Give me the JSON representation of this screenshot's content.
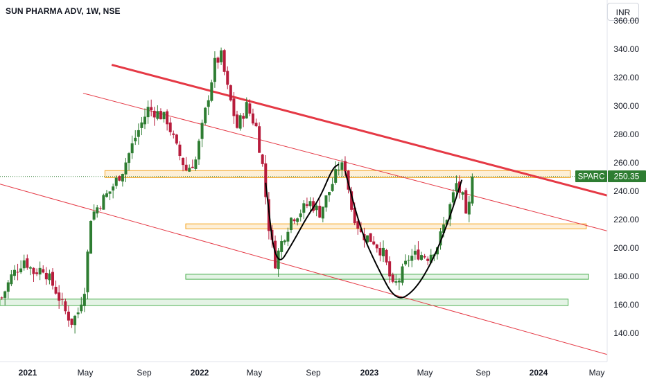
{
  "header": {
    "title": "SUN PHARMA ADV, 1W, NSE"
  },
  "currency": "INR",
  "last_price": {
    "symbol": "SPARC",
    "value": "250.35"
  },
  "colors": {
    "up": "#26a69a",
    "up_fill": "#2f7d32",
    "down": "#c2185b",
    "down_fill": "#b71c3c",
    "trendline": "#e53945",
    "resistance": "#f5a623",
    "support": "#4caf50",
    "pattern": "#000000"
  },
  "chart_data": {
    "type": "candlestick",
    "title": "SUN PHARMA ADV, 1W, NSE",
    "y_ticks": [
      "140.00",
      "160.00",
      "180.00",
      "200.00",
      "220.00",
      "240.00",
      "260.00",
      "280.00",
      "300.00",
      "320.00",
      "340.00",
      "360.00"
    ],
    "x_ticks": [
      {
        "label": "2021",
        "bold": true
      },
      {
        "label": "May",
        "bold": false
      },
      {
        "label": "Sep",
        "bold": false
      },
      {
        "label": "2022",
        "bold": true
      },
      {
        "label": "May",
        "bold": false
      },
      {
        "label": "Sep",
        "bold": false
      },
      {
        "label": "2023",
        "bold": true
      },
      {
        "label": "May",
        "bold": false
      },
      {
        "label": "Sep",
        "bold": false
      },
      {
        "label": "2024",
        "bold": true
      },
      {
        "label": "May",
        "bold": false
      }
    ],
    "x_range": [
      "2020-11",
      "2024-06"
    ],
    "ylim": [
      123,
      362
    ],
    "grid": false,
    "last_price": 250.35,
    "anchors": [
      [
        "2020-11-05",
        165
      ],
      [
        "2020-11-26",
        180
      ],
      [
        "2020-12-24",
        192
      ],
      [
        "2021-01-14",
        183
      ],
      [
        "2021-02-04",
        186
      ],
      [
        "2021-03-04",
        170
      ],
      [
        "2021-03-25",
        155
      ],
      [
        "2021-04-08",
        148
      ],
      [
        "2021-04-22",
        155
      ],
      [
        "2021-05-06",
        172
      ],
      [
        "2021-05-13",
        196
      ],
      [
        "2021-05-20",
        222
      ],
      [
        "2021-06-10",
        232
      ],
      [
        "2021-07-01",
        240
      ],
      [
        "2021-07-29",
        255
      ],
      [
        "2021-08-26",
        278
      ],
      [
        "2021-09-23",
        298
      ],
      [
        "2021-10-14",
        295
      ],
      [
        "2021-11-04",
        290
      ],
      [
        "2021-11-25",
        270
      ],
      [
        "2021-12-16",
        255
      ],
      [
        "2022-01-06",
        262
      ],
      [
        "2022-01-27",
        296
      ],
      [
        "2022-02-17",
        330
      ],
      [
        "2022-03-03",
        335
      ],
      [
        "2022-03-17",
        312
      ],
      [
        "2022-04-07",
        285
      ],
      [
        "2022-04-28",
        300
      ],
      [
        "2022-05-19",
        285
      ],
      [
        "2022-06-02",
        258
      ],
      [
        "2022-06-16",
        215
      ],
      [
        "2022-06-30",
        190
      ],
      [
        "2022-07-14",
        204
      ],
      [
        "2022-08-04",
        221
      ],
      [
        "2022-08-25",
        226
      ],
      [
        "2022-09-15",
        232
      ],
      [
        "2022-10-06",
        225
      ],
      [
        "2022-10-27",
        240
      ],
      [
        "2022-11-17",
        257
      ],
      [
        "2022-12-01",
        257
      ],
      [
        "2022-12-15",
        228
      ],
      [
        "2023-01-05",
        210
      ],
      [
        "2023-02-02",
        205
      ],
      [
        "2023-02-23",
        196
      ],
      [
        "2023-03-16",
        172
      ],
      [
        "2023-03-30",
        178
      ],
      [
        "2023-04-20",
        193
      ],
      [
        "2023-05-11",
        196
      ],
      [
        "2023-06-01",
        194
      ],
      [
        "2023-06-22",
        202
      ],
      [
        "2023-07-13",
        222
      ],
      [
        "2023-08-03",
        245
      ],
      [
        "2023-08-17",
        235
      ],
      [
        "2023-08-24",
        220
      ],
      [
        "2023-08-31",
        230
      ],
      [
        "2023-09-07",
        250
      ]
    ],
    "trendlines": [
      {
        "name": "main-resistance",
        "from": [
          "2021-07-05",
          329
        ],
        "to": [
          "2024-06-30",
          237
        ]
      },
      {
        "name": "upper-channel",
        "from": [
          "2021-05-03",
          309
        ],
        "to": [
          "2024-06-30",
          212
        ]
      },
      {
        "name": "lower-channel",
        "from": [
          "2020-11-01",
          245
        ],
        "to": [
          "2024-06-30",
          125
        ]
      }
    ],
    "zones": [
      {
        "name": "resistance-zone-250",
        "from": "2021-06-20",
        "to": "2024-04-10",
        "low": 249.5,
        "high": 254.5,
        "kind": "resistance"
      },
      {
        "name": "resistance-zone-216",
        "from": "2021-12-15",
        "to": "2024-05-15",
        "low": 213.5,
        "high": 217.0,
        "kind": "resistance"
      },
      {
        "name": "support-zone-180",
        "from": "2021-12-15",
        "to": "2024-05-20",
        "low": 178.0,
        "high": 181.5,
        "kind": "support"
      },
      {
        "name": "support-zone-162",
        "from": "2020-11-01",
        "to": "2024-04-05",
        "low": 159.5,
        "high": 164.0,
        "kind": "support"
      }
    ],
    "patterns": [
      {
        "name": "cup-left",
        "points": [
          [
            "2022-06-09",
            246
          ],
          [
            "2022-07-01",
            184
          ],
          [
            "2022-08-10",
            205
          ],
          [
            "2022-09-08",
            222
          ],
          [
            "2022-10-06",
            235
          ],
          [
            "2022-11-03",
            256
          ],
          [
            "2022-11-17",
            259
          ]
        ]
      },
      {
        "name": "cup-right",
        "points": [
          [
            "2022-12-01",
            254
          ],
          [
            "2023-01-05",
            212
          ],
          [
            "2023-02-09",
            187
          ],
          [
            "2023-03-23",
            162
          ],
          [
            "2023-05-04",
            170
          ],
          [
            "2023-06-15",
            193
          ],
          [
            "2023-07-20",
            222
          ],
          [
            "2023-08-15",
            248
          ]
        ]
      }
    ]
  }
}
